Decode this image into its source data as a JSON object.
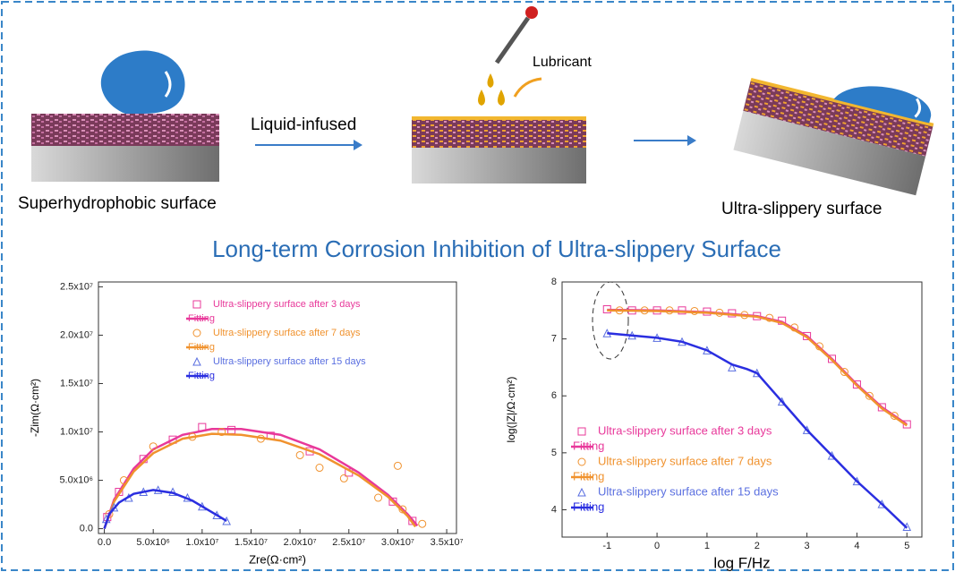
{
  "diagram": {
    "label_left": "Superhydrophobic surface",
    "label_arrow": "Liquid-infused",
    "label_lubricant": "Lubricant",
    "label_right": "Ultra-slippery surface"
  },
  "title": "Long-term Corrosion Inhibition of Ultra-slippery Surface",
  "chart_data": [
    {
      "type": "line",
      "x_label": "Zre(Ω·cm²)",
      "y_label": "-Zim(Ω·cm²)",
      "legend": "upper center",
      "xlim": [
        -600000,
        36000000
      ],
      "ylim": [
        -500000,
        25500000
      ],
      "xticks": [
        {
          "value": 0,
          "label": "0.0"
        },
        {
          "value": 5000000,
          "label": "5.0x10⁶"
        },
        {
          "value": 10000000,
          "label": "1.0x10⁷"
        },
        {
          "value": 15000000,
          "label": "1.5x10⁷"
        },
        {
          "value": 20000000,
          "label": "2.0x10⁷"
        },
        {
          "value": 25000000,
          "label": "2.5x10⁷"
        },
        {
          "value": 30000000,
          "label": "3.0x10⁷"
        },
        {
          "value": 35000000,
          "label": "3.5x10⁷"
        }
      ],
      "yticks": [
        {
          "value": 0,
          "label": "0.0"
        },
        {
          "value": 5000000,
          "label": "5.0x10⁶"
        },
        {
          "value": 10000000,
          "label": "1.0x10⁷"
        },
        {
          "value": 15000000,
          "label": "1.5x10⁷"
        },
        {
          "value": 20000000,
          "label": "2.0x10⁷"
        },
        {
          "value": 25000000,
          "label": "2.5x10⁷"
        }
      ],
      "series": [
        {
          "name": "Ultra-slippery surface after 3 days",
          "color": "#e8389a",
          "mode": "markers",
          "marker": "square",
          "x": [
            300000,
            1500000,
            4000000,
            7000000,
            10000000,
            13000000,
            17000000,
            21000000,
            25000000,
            29500000,
            31500000
          ],
          "values": [
            1200000,
            3800000,
            7200000,
            9200000,
            10500000,
            10200000,
            9600000,
            8000000,
            5800000,
            2800000,
            800000
          ]
        },
        {
          "name": "Fitting",
          "color": "#e8389a",
          "mode": "line",
          "x": [
            0,
            1000000,
            3000000,
            5000000,
            8000000,
            11000000,
            14000000,
            18000000,
            22000000,
            26000000,
            29000000,
            31000000,
            32000000
          ],
          "values": [
            0,
            3000000,
            6200000,
            8200000,
            9700000,
            10300000,
            10300000,
            9700000,
            8200000,
            5800000,
            3500000,
            1500000,
            300000
          ]
        },
        {
          "name": "Ultra-slippery surface after 7 days",
          "color": "#f0922e",
          "mode": "markers",
          "marker": "circle",
          "x": [
            500000,
            2000000,
            5000000,
            9000000,
            12000000,
            16000000,
            20000000,
            22000000,
            24500000,
            28000000,
            30000000,
            30500000,
            32500000
          ],
          "values": [
            1500000,
            5000000,
            8500000,
            9500000,
            10000000,
            9300000,
            7600000,
            6300000,
            5200000,
            3200000,
            6500000,
            2000000,
            500000
          ]
        },
        {
          "name": "Fitting",
          "color": "#f0922e",
          "mode": "line",
          "x": [
            0,
            1000000,
            3000000,
            5000000,
            8000000,
            11000000,
            14000000,
            18000000,
            22000000,
            26000000,
            29000000,
            31000000,
            31800000
          ],
          "values": [
            0,
            2800000,
            5900000,
            7800000,
            9300000,
            9800000,
            9700000,
            9100000,
            7700000,
            5500000,
            3300000,
            1300000,
            200000
          ]
        },
        {
          "name": "Ultra-slippery surface after 15 days",
          "color": "#5a6fe0",
          "mode": "markers",
          "marker": "triangle",
          "x": [
            200000,
            1000000,
            2500000,
            4000000,
            5500000,
            7000000,
            8500000,
            10000000,
            11500000,
            12500000
          ],
          "values": [
            1000000,
            2200000,
            3200000,
            3800000,
            4000000,
            3800000,
            3200000,
            2300000,
            1400000,
            800000
          ]
        },
        {
          "name": "Fitting",
          "color": "#2a2ee0",
          "mode": "line",
          "x": [
            0,
            500000,
            1500000,
            3000000,
            5000000,
            7000000,
            9000000,
            11000000,
            12500000
          ],
          "values": [
            0,
            1500000,
            2700000,
            3600000,
            4000000,
            3700000,
            2900000,
            1700000,
            800000
          ]
        }
      ]
    },
    {
      "type": "line",
      "x_label": "log F/Hz",
      "y_label": "log(|Z|/Ω·cm²)",
      "legend": "lower left",
      "xlim": [
        -1.9,
        5.3
      ],
      "ylim": [
        3.52,
        8.0
      ],
      "xticks": [
        -1,
        0,
        1,
        2,
        3,
        4,
        5
      ],
      "yticks": [
        4,
        5,
        6,
        7,
        8
      ],
      "series": [
        {
          "name": "Ultra-slippery surface after 3 days",
          "color": "#e8389a",
          "mode": "markers",
          "marker": "square",
          "x": [
            -1,
            -0.5,
            0,
            0.5,
            1,
            1.5,
            2,
            2.5,
            3,
            3.5,
            4,
            4.5,
            5
          ],
          "values": [
            7.52,
            7.5,
            7.5,
            7.5,
            7.48,
            7.45,
            7.4,
            7.32,
            7.05,
            6.65,
            6.2,
            5.8,
            5.5
          ]
        },
        {
          "name": "Fitting",
          "color": "#e8389a",
          "mode": "line",
          "x": [
            -1,
            0,
            1,
            2,
            2.5,
            3,
            3.5,
            4,
            4.5,
            5
          ],
          "values": [
            7.51,
            7.5,
            7.47,
            7.4,
            7.3,
            7.05,
            6.65,
            6.2,
            5.8,
            5.5
          ]
        },
        {
          "name": "Ultra-slippery surface after 7 days",
          "color": "#f0922e",
          "mode": "markers",
          "marker": "circle",
          "x": [
            -0.75,
            -0.25,
            0.25,
            0.75,
            1.25,
            1.75,
            2.25,
            2.75,
            3.25,
            3.75,
            4.25,
            4.75
          ],
          "values": [
            7.5,
            7.5,
            7.5,
            7.49,
            7.46,
            7.42,
            7.37,
            7.2,
            6.87,
            6.42,
            6.0,
            5.65
          ]
        },
        {
          "name": "Fitting",
          "color": "#f0922e",
          "mode": "line",
          "x": [
            -1,
            0,
            1,
            2,
            2.5,
            3,
            3.5,
            4,
            4.5,
            5
          ],
          "values": [
            7.5,
            7.49,
            7.46,
            7.39,
            7.28,
            7.03,
            6.63,
            6.18,
            5.78,
            5.48
          ]
        },
        {
          "name": "Ultra-slippery surface after 15 days",
          "color": "#5a6fe0",
          "mode": "markers",
          "marker": "triangle",
          "x": [
            -1,
            -0.5,
            0,
            0.5,
            1,
            1.5,
            2,
            2.5,
            3,
            3.5,
            4,
            4.5,
            5
          ],
          "values": [
            7.1,
            7.06,
            7.02,
            6.95,
            6.8,
            6.5,
            6.4,
            5.9,
            5.4,
            4.95,
            4.5,
            4.1,
            3.7
          ]
        },
        {
          "name": "Fitting",
          "color": "#2a2ee0",
          "mode": "line",
          "x": [
            -1,
            0,
            0.5,
            1,
            1.5,
            1.8,
            2,
            2.5,
            3,
            3.5,
            4,
            4.5,
            5
          ],
          "values": [
            7.1,
            7.02,
            6.95,
            6.8,
            6.55,
            6.47,
            6.4,
            5.9,
            5.4,
            4.95,
            4.5,
            4.1,
            3.68
          ]
        }
      ]
    }
  ]
}
